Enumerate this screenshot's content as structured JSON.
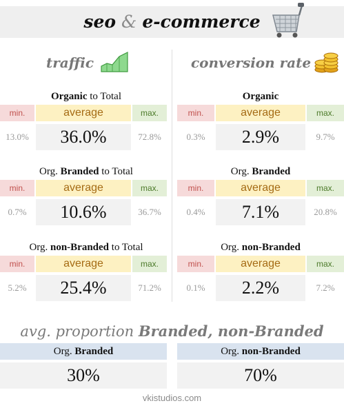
{
  "header": {
    "word1": "seo",
    "amp": "&",
    "word2": "e-commerce",
    "icon": "shopping-cart-icon"
  },
  "traffic": {
    "heading": "traffic",
    "icon": "area-chart-icon",
    "metrics": [
      {
        "title_bold": "Organic",
        "title_tail": " to Total",
        "min_label": "min.",
        "avg_label": "average",
        "max_label": "max.",
        "min": "13.0%",
        "avg": "36.0%",
        "max": "72.8%"
      },
      {
        "title_prefix": "Org. ",
        "title_bold": "Branded",
        "title_tail": " to Total",
        "min_label": "min.",
        "avg_label": "average",
        "max_label": "max.",
        "min": "0.7%",
        "avg": "10.6%",
        "max": "36.7%"
      },
      {
        "title_prefix": "Org. ",
        "title_bold": "non-Branded",
        "title_tail": " to Total",
        "min_label": "min.",
        "avg_label": "average",
        "max_label": "max.",
        "min": "5.2%",
        "avg": "25.4%",
        "max": "71.2%"
      }
    ]
  },
  "conversion": {
    "heading": "conversion rate",
    "icon": "coins-icon",
    "metrics": [
      {
        "title_bold": "Organic",
        "min_label": "min.",
        "avg_label": "average",
        "max_label": "max.",
        "min": "0.3%",
        "avg": "2.9%",
        "max": "9.7%"
      },
      {
        "title_prefix": "Org. ",
        "title_bold": "Branded",
        "min_label": "min.",
        "avg_label": "average",
        "max_label": "max.",
        "min": "0.4%",
        "avg": "7.1%",
        "max": "20.8%"
      },
      {
        "title_prefix": "Org. ",
        "title_bold": "non-Branded",
        "min_label": "min.",
        "avg_label": "average",
        "max_label": "max.",
        "min": "0.1%",
        "avg": "2.2%",
        "max": "7.2%"
      }
    ]
  },
  "proportion": {
    "heading_prefix": "avg. proportion ",
    "heading_bold": "Branded, non-Branded",
    "branded": {
      "label_prefix": "Org. ",
      "label_bold": "Branded",
      "value": "30%"
    },
    "nonbranded": {
      "label_prefix": "Org. ",
      "label_bold": "non-Branded",
      "value": "70%"
    }
  },
  "footer": {
    "text": "vkistudios.com"
  },
  "colors": {
    "min_bg": "#f6dada",
    "min_text": "#c0504d",
    "avg_bg": "#fdf1c2",
    "avg_text": "#a56b14",
    "max_bg": "#e3efd7",
    "max_text": "#4c7a2a",
    "value_bg": "#f2f2f2",
    "proportion_label_bg": "#d9e3ef"
  }
}
